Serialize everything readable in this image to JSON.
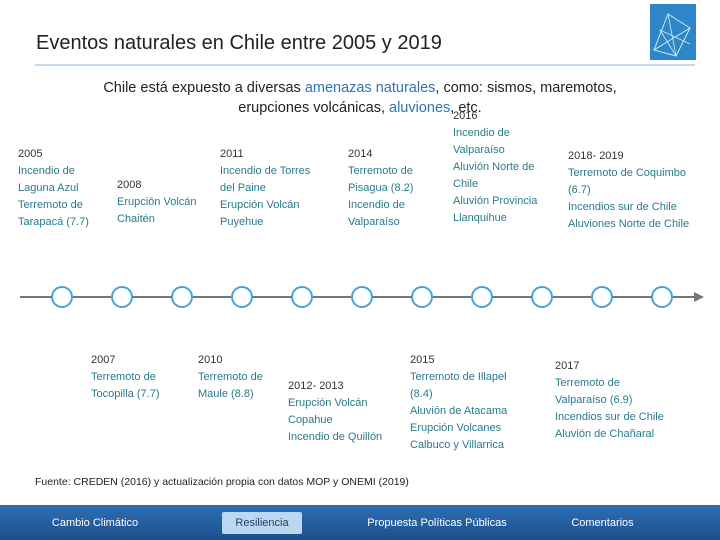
{
  "header": {
    "title": "Eventos naturales en Chile entre 2005 y 2019"
  },
  "intro": {
    "line1": [
      "Chile está expuesto a diversas ",
      "amenazas naturales",
      ", como: sismos, maremotos,"
    ],
    "line2": [
      "erupciones volcánicas, ",
      "aluviones",
      ", etc."
    ]
  },
  "events_above": [
    {
      "year": "2005",
      "lines": [
        "Incendio de",
        "Laguna Azul",
        "Terremoto de",
        "Tarapacá (7.7)"
      ]
    },
    {
      "year": "2008",
      "lines": [
        "Erupción Volcán",
        "Chaitén"
      ]
    },
    {
      "year": "2011",
      "lines": [
        "Incendio de Torres",
        "del Paine",
        "Erupción Volcán",
        "Puyehue"
      ]
    },
    {
      "year": "2014",
      "lines": [
        "Terremoto de",
        "Pisagua (8.2)",
        "Incendio de",
        "Valparaíso"
      ]
    },
    {
      "year": "2016",
      "lines": [
        "Incendio de",
        "Valparaíso",
        "Aluvión Norte de",
        "Chile",
        "Aluvión Provincia",
        "Llanquihue"
      ]
    },
    {
      "year": "2018- 2019",
      "lines": [
        "Terremoto de Coquimbo",
        "(6.7)",
        "Incendios sur de Chile",
        "Aluviones Norte de Chile"
      ]
    }
  ],
  "events_below": [
    {
      "year": "2007",
      "lines": [
        "Terremoto de",
        "Tocopilla (7.7)"
      ]
    },
    {
      "year": "2010",
      "lines": [
        "Terremoto de",
        "Maule (8.8)"
      ]
    },
    {
      "year": "2012- 2013",
      "lines": [
        "Erupción Volcán",
        "Copahue",
        "Incendio de Quillón"
      ]
    },
    {
      "year": "2015",
      "lines": [
        "Terremoto de Illapel",
        "(8.4)",
        "Aluvión de Atacama",
        "Erupción Volcanes",
        "Calbuco y Villarrica"
      ]
    },
    {
      "year": "2017",
      "lines": [
        "Terremoto de",
        "Valparaíso (6.9)",
        "Incendios sur de Chile",
        "Aluvión de Chañaral"
      ]
    }
  ],
  "source": "Fuente: CREDEN (2016) y actualización propia con datos MOP y ONEMI (2019)",
  "nav": [
    "Cambio Climático",
    "Resiliencia",
    "Propuesta Políticas Públicas",
    "Comentarios"
  ]
}
